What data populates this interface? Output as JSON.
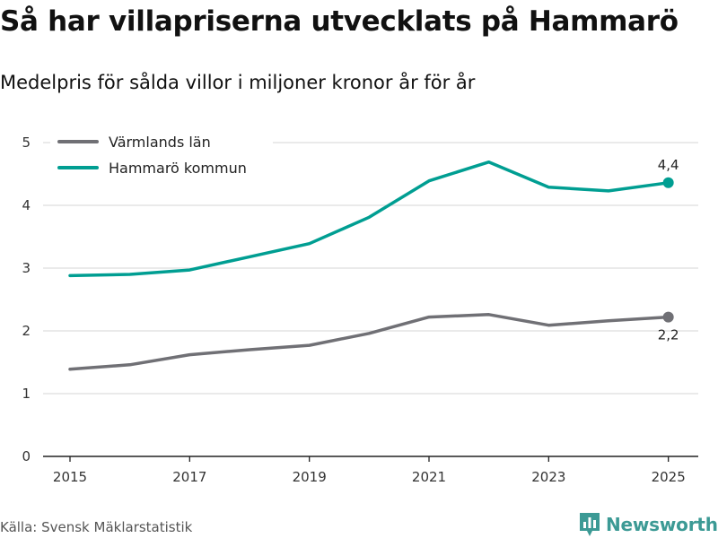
{
  "header": {
    "title": "Så har villapriserna utvecklats på Hammarö",
    "subtitle": "Medelpris för sålda villor i miljoner kronor år för år"
  },
  "footer": {
    "source": "Källa: Svensk Mäklarstatistik",
    "brand": "Newsworthy"
  },
  "colors": {
    "varmland": "#707075",
    "hammaro": "#009e92",
    "grid": "#dddddd",
    "axis": "#222222",
    "brand": "#3c9a95"
  },
  "chart_data": {
    "type": "line",
    "title": "Så har villapriserna utvecklats på Hammarö",
    "subtitle": "Medelpris för sålda villor i miljoner kronor år för år",
    "x": [
      2015,
      2016,
      2017,
      2018,
      2019,
      2020,
      2021,
      2022,
      2023,
      2024,
      2025
    ],
    "x_ticks": [
      "2015",
      "2017",
      "2019",
      "2021",
      "2023",
      "2025"
    ],
    "y_ticks": [
      "0",
      "1",
      "2",
      "3",
      "4",
      "5"
    ],
    "ylim": [
      0,
      5
    ],
    "xlim": [
      2014.55,
      2025.5
    ],
    "grid": true,
    "legend_position": "top-left",
    "series": [
      {
        "name": "Värmlands län",
        "key": "varmland",
        "values": [
          1.39,
          1.46,
          1.62,
          1.7,
          1.77,
          1.96,
          2.22,
          2.26,
          2.09,
          2.16,
          2.22
        ],
        "end_label": "2,2",
        "end_label_position": "below"
      },
      {
        "name": "Hammarö kommun",
        "key": "hammaro",
        "values": [
          2.88,
          2.9,
          2.97,
          3.18,
          3.39,
          3.81,
          4.39,
          4.69,
          4.29,
          4.23,
          4.36
        ],
        "end_label": "4,4",
        "end_label_position": "above"
      }
    ]
  }
}
